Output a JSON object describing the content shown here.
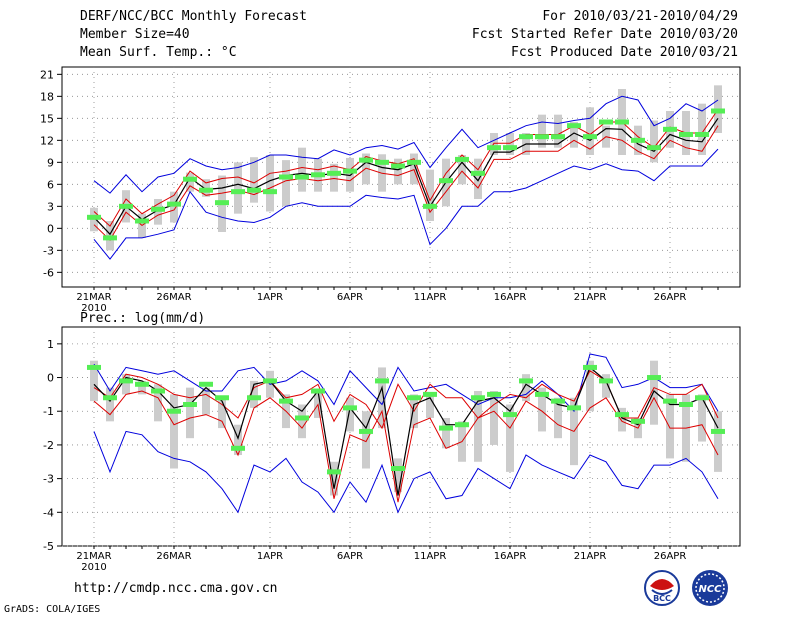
{
  "header": {
    "title": "DERF/NCC/BCC Monthly Forecast",
    "member_size": "Member Size=40",
    "variable_temp": "Mean Surf. Temp.: °C",
    "period": "For 2010/03/21-2010/04/29",
    "started": "Fcst Started Refer Date 2010/03/20",
    "produced": "Fcst Produced Date 2010/03/21"
  },
  "footer": {
    "url": "http://cmdp.ncc.cma.gov.cn",
    "grads": "GrADS: COLA/IGES",
    "logo_bcc": "BCC",
    "logo_ncc": "NCC"
  },
  "colors": {
    "max_min": "#0000dd",
    "spread": "#dd0000",
    "mean": "#000000",
    "green_bar": "#55ee55",
    "box": "#cccccc"
  },
  "chart_data": [
    {
      "type": "line",
      "title": "Mean Surf. Temp.: °C",
      "xlabel": "",
      "ylabel": "",
      "ylim": [
        -8,
        22
      ],
      "yticks": [
        -6,
        -3,
        0,
        3,
        6,
        9,
        12,
        15,
        18,
        21
      ],
      "xticks": [
        {
          "day": 1,
          "label": "21MAR",
          "sub": "2010"
        },
        {
          "day": 6,
          "label": "26MAR",
          "sub": ""
        },
        {
          "day": 12,
          "label": "1APR",
          "sub": ""
        },
        {
          "day": 17,
          "label": "6APR",
          "sub": ""
        },
        {
          "day": 22,
          "label": "11APR",
          "sub": ""
        },
        {
          "day": 27,
          "label": "16APR",
          "sub": ""
        },
        {
          "day": 32,
          "label": "21APR",
          "sub": ""
        },
        {
          "day": 37,
          "label": "26APR",
          "sub": ""
        }
      ],
      "days": [
        1,
        2,
        3,
        4,
        5,
        6,
        7,
        8,
        9,
        10,
        11,
        12,
        13,
        14,
        15,
        16,
        17,
        18,
        19,
        20,
        21,
        22,
        23,
        24,
        25,
        26,
        27,
        28,
        29,
        30,
        31,
        32,
        33,
        34,
        35,
        36,
        37,
        38,
        39,
        40
      ],
      "series": [
        {
          "name": "max",
          "color": "#0000dd",
          "values": [
            6.5,
            4.8,
            7.3,
            5,
            7,
            7.5,
            9.5,
            8.5,
            8,
            8.3,
            9,
            10,
            10,
            9.7,
            9.5,
            10.7,
            10,
            11,
            11.3,
            10.8,
            11.7,
            8.3,
            11,
            13.5,
            11,
            12,
            13,
            14,
            14.5,
            14.3,
            14.7,
            15,
            17,
            18,
            17.5,
            14,
            15,
            17,
            16,
            17.5
          ]
        },
        {
          "name": "ens_upper",
          "color": "#dd0000",
          "values": [
            2.3,
            0.3,
            4,
            2,
            3.3,
            4.5,
            7.8,
            6.2,
            6.8,
            7,
            6.2,
            7.5,
            7.8,
            8.3,
            8,
            8.5,
            8,
            9.8,
            9.2,
            8.8,
            9.5,
            3.8,
            7.5,
            10,
            8,
            11.6,
            11.6,
            12.8,
            12.8,
            12.8,
            14,
            12.8,
            14.5,
            14.5,
            12.5,
            11,
            13.8,
            13,
            13,
            16.2
          ]
        },
        {
          "name": "mean",
          "color": "#000000",
          "values": [
            1.5,
            -0.8,
            3,
            1.2,
            2.5,
            3.2,
            6.9,
            5.3,
            5.5,
            6,
            5.4,
            6.5,
            7.2,
            7.5,
            7.2,
            7.5,
            7.2,
            9,
            8.3,
            8,
            8.8,
            3,
            6.3,
            9,
            6.5,
            10.4,
            10.4,
            11.5,
            11.5,
            11.5,
            13,
            12,
            13.6,
            13.5,
            11.5,
            10.5,
            12.8,
            12,
            11.8,
            15
          ]
        },
        {
          "name": "ens_lower",
          "color": "#dd0000",
          "values": [
            0.5,
            -1.6,
            2.2,
            0.4,
            1.8,
            2.5,
            5.8,
            4.5,
            4.8,
            5.2,
            4.6,
            5.5,
            6.5,
            6.8,
            6.5,
            6.8,
            6.5,
            8.2,
            7.5,
            7.2,
            8,
            2.2,
            5,
            7.8,
            5.5,
            9.4,
            9.4,
            10.5,
            10.5,
            10.5,
            12,
            10.8,
            12.5,
            12,
            10.5,
            9.5,
            12,
            11,
            10.5,
            14
          ]
        },
        {
          "name": "min",
          "color": "#0000dd",
          "values": [
            -1.5,
            -4.2,
            -1.3,
            -1.3,
            -0.8,
            -0.2,
            5,
            2.2,
            1.5,
            1,
            0.8,
            1.5,
            3,
            3.5,
            3,
            3,
            3,
            4.5,
            4.2,
            4,
            4.5,
            -2.2,
            0,
            3,
            3,
            5,
            5,
            5.5,
            6.5,
            7.5,
            8.5,
            8,
            8.8,
            8,
            7.8,
            6.5,
            8.5,
            8.5,
            8.5,
            10.8
          ]
        },
        {
          "name": "box_top",
          "color": "#cccccc",
          "values": [
            2.8,
            1,
            5.2,
            2,
            4,
            5,
            7.6,
            6.7,
            7.2,
            9,
            9.7,
            10,
            9.3,
            11,
            9.5,
            8.8,
            9.6,
            10.2,
            10.1,
            9.5,
            10.2,
            8,
            9.5,
            10,
            9.5,
            13,
            13,
            13,
            15.5,
            15.5,
            14.5,
            16.5,
            14,
            19,
            14,
            14.7,
            16,
            16,
            17,
            19.5
          ]
        },
        {
          "name": "box_bottom",
          "color": "#cccccc",
          "values": [
            -0.4,
            -3,
            0.8,
            -1.3,
            0.5,
            0.8,
            5,
            4.3,
            -0.5,
            2,
            3.5,
            2.3,
            3,
            5,
            5,
            5,
            5,
            6,
            5,
            6,
            6,
            1,
            3,
            6,
            4,
            10,
            10,
            10,
            11,
            11,
            11,
            10,
            11,
            10,
            10,
            9,
            11,
            10,
            10,
            13
          ]
        },
        {
          "name": "green_bar",
          "color": "#55ee55",
          "values": [
            1.5,
            -1.3,
            3,
            1,
            2.6,
            3.3,
            6.7,
            5.2,
            3.5,
            5,
            5.2,
            5,
            7,
            7,
            7.3,
            7.5,
            7.8,
            9.3,
            9,
            8.5,
            9,
            3,
            6.5,
            9.4,
            7.5,
            11,
            11,
            12.5,
            12.5,
            12.5,
            14,
            12.5,
            14.5,
            14.5,
            12,
            11,
            13.5,
            12.8,
            12.8,
            16
          ]
        }
      ]
    },
    {
      "type": "line",
      "title": "Prec.: log(mm/d)",
      "xlabel": "",
      "ylabel": "",
      "ylim": [
        -5,
        1.5
      ],
      "yticks": [
        -5,
        -4,
        -3,
        -2,
        -1,
        0,
        1
      ],
      "xticks": [
        {
          "day": 1,
          "label": "21MAR",
          "sub": "2010"
        },
        {
          "day": 6,
          "label": "26MAR",
          "sub": ""
        },
        {
          "day": 12,
          "label": "1APR",
          "sub": ""
        },
        {
          "day": 17,
          "label": "6APR",
          "sub": ""
        },
        {
          "day": 22,
          "label": "11APR",
          "sub": ""
        },
        {
          "day": 27,
          "label": "16APR",
          "sub": ""
        },
        {
          "day": 32,
          "label": "21APR",
          "sub": ""
        },
        {
          "day": 37,
          "label": "26APR",
          "sub": ""
        }
      ],
      "days": [
        1,
        2,
        3,
        4,
        5,
        6,
        7,
        8,
        9,
        10,
        11,
        12,
        13,
        14,
        15,
        16,
        17,
        18,
        19,
        20,
        21,
        22,
        23,
        24,
        25,
        26,
        27,
        28,
        29,
        30,
        31,
        32,
        33,
        34,
        35,
        36,
        37,
        38,
        39,
        40
      ],
      "series": [
        {
          "name": "max",
          "color": "#0000dd",
          "values": [
            0.4,
            -0.4,
            0.3,
            0.2,
            0.1,
            0.2,
            -0.1,
            -0.4,
            -0.4,
            0.2,
            0.3,
            -0.2,
            -0.1,
            0.2,
            -0.1,
            -0.8,
            0.2,
            -0.3,
            -0.8,
            0.3,
            -0.4,
            -0.3,
            -0.2,
            -0.5,
            -0.8,
            -0.6,
            -0.6,
            -0.5,
            -0.1,
            -0.5,
            -1,
            0.7,
            0.6,
            -0.3,
            -0.2,
            0,
            -0.3,
            -0.3,
            -0.2,
            -1
          ]
        },
        {
          "name": "ens_upper",
          "color": "#dd0000",
          "values": [
            -0.3,
            -0.6,
            0.1,
            0,
            -0.2,
            -0.5,
            -0.6,
            -0.5,
            -0.8,
            -1.2,
            -0.3,
            -0.1,
            -0.6,
            -0.5,
            -0.2,
            -1.3,
            -0.5,
            -0.8,
            -1.5,
            -0.2,
            -1,
            -0.2,
            -0.6,
            -0.6,
            -1.2,
            -0.8,
            -0.5,
            -0.6,
            -0.2,
            -0.5,
            -0.7,
            0.2,
            -0.1,
            -1.2,
            -1.2,
            -0.3,
            -0.5,
            -0.5,
            -0.2,
            -1.2
          ]
        },
        {
          "name": "mean",
          "color": "#000000",
          "values": [
            -0.2,
            -0.7,
            0,
            -0.1,
            -0.4,
            -0.9,
            -0.8,
            -0.3,
            -0.7,
            -1.8,
            -0.2,
            -0.1,
            -0.7,
            -1,
            -0.4,
            -3.3,
            -0.9,
            -1.5,
            -0.3,
            -3.5,
            -0.8,
            -0.6,
            -1.4,
            -1.4,
            -0.7,
            -0.6,
            -1,
            -0.2,
            -0.5,
            -0.8,
            -0.9,
            0.3,
            -0.1,
            -1.2,
            -1.4,
            -0.4,
            -0.8,
            -0.8,
            -0.6,
            -1.5
          ]
        },
        {
          "name": "ens_lower",
          "color": "#dd0000",
          "values": [
            -0.7,
            -1.1,
            -0.5,
            -0.4,
            -0.6,
            -1.4,
            -1.2,
            -1.1,
            -1.3,
            -2.3,
            -0.9,
            -0.6,
            -1,
            -1.5,
            -0.8,
            -3.6,
            -1.7,
            -1.9,
            -1,
            -3.7,
            -1.4,
            -1.2,
            -2.1,
            -1.9,
            -1.2,
            -1,
            -1.5,
            -0.7,
            -1,
            -1.4,
            -1.6,
            -0.9,
            -0.6,
            -1.3,
            -1.5,
            -0.6,
            -1.5,
            -1.5,
            -1.4,
            -2.3
          ]
        },
        {
          "name": "min",
          "color": "#0000dd",
          "values": [
            -1.6,
            -2.8,
            -1.6,
            -1.7,
            -2.2,
            -2.4,
            -2.5,
            -2.8,
            -3.3,
            -4,
            -2.6,
            -2.8,
            -2.4,
            -3.1,
            -3.4,
            -4,
            -3.1,
            -3.7,
            -2.6,
            -4,
            -3,
            -2.8,
            -3.6,
            -3.5,
            -2.7,
            -3,
            -3.3,
            -2.3,
            -2.6,
            -2.8,
            -3,
            -2.3,
            -2.5,
            -3.2,
            -3.3,
            -2.6,
            -2.6,
            -2.4,
            -2.8,
            -3.6
          ]
        },
        {
          "name": "box_top",
          "color": "#cccccc",
          "values": [
            0.5,
            -0.3,
            0.1,
            -0.1,
            -0.2,
            -0.5,
            -0.3,
            -0.3,
            -0.6,
            -1.4,
            -0.1,
            0.2,
            -0.5,
            -0.8,
            -0.4,
            -2.5,
            -0.6,
            -1,
            0.3,
            -2.4,
            -0.5,
            -0.5,
            -1.2,
            -1.3,
            -0.4,
            -0.4,
            -0.8,
            0.1,
            -0.3,
            -0.6,
            -0.6,
            0.5,
            0.1,
            -0.9,
            -1.2,
            0.5,
            -0.5,
            -0.5,
            -0.5,
            -1
          ]
        },
        {
          "name": "box_bottom",
          "color": "#cccccc",
          "values": [
            -0.7,
            -1.3,
            -0.5,
            -0.5,
            -1.3,
            -2.7,
            -1.8,
            -1.1,
            -1.5,
            -2.3,
            -0.9,
            -0.6,
            -1.5,
            -1.8,
            -1.2,
            -3.5,
            -1.6,
            -2.7,
            -1.5,
            -3.4,
            -1.5,
            -1.2,
            -2.1,
            -2.5,
            -2.5,
            -2,
            -2.8,
            -0.7,
            -1.6,
            -1.8,
            -2.6,
            -1,
            -0.6,
            -1.6,
            -1.8,
            -1.4,
            -2.4,
            -2.5,
            -1.9,
            -2.8
          ]
        },
        {
          "name": "green_bar",
          "color": "#55ee55",
          "values": [
            0.3,
            -0.6,
            -0.1,
            -0.2,
            -0.4,
            -1,
            -0.8,
            -0.2,
            -0.6,
            -2.1,
            -0.6,
            -0.1,
            -0.7,
            -1.2,
            -0.4,
            -2.8,
            -0.9,
            -1.6,
            -0.1,
            -2.7,
            -0.6,
            -0.5,
            -1.5,
            -1.4,
            -0.6,
            -0.5,
            -1.1,
            -0.1,
            -0.5,
            -0.7,
            -0.9,
            0.3,
            -0.1,
            -1.1,
            -1.3,
            0,
            -0.7,
            -0.8,
            -0.6,
            -1.6
          ]
        }
      ]
    }
  ]
}
